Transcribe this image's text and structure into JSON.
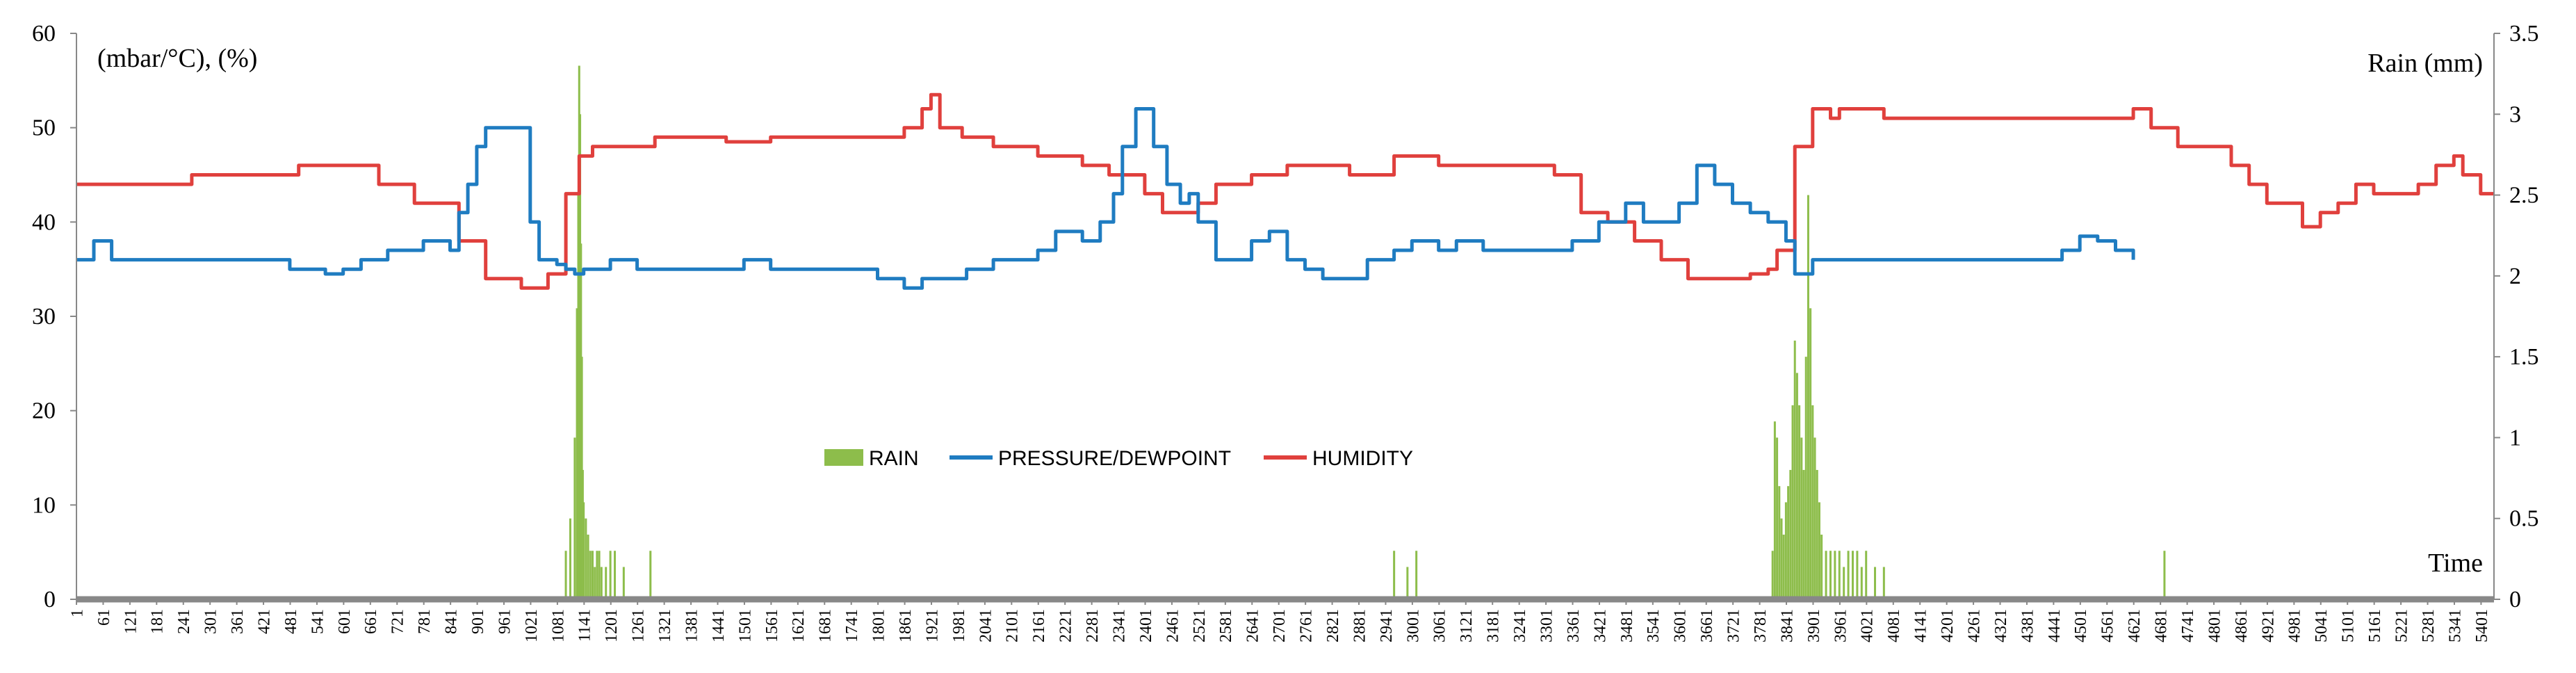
{
  "chart_data": {
    "type": "line",
    "left_axis_title": "(mbar/°C), (%)",
    "right_axis_title": "Rain (mm)",
    "x_axis_title": "Time",
    "xlim": [
      1,
      5430
    ],
    "ylim_left": [
      0,
      60
    ],
    "ylim_right": [
      0,
      3.5
    ],
    "yticks_left": [
      "0",
      "10",
      "20",
      "30",
      "40",
      "50",
      "60"
    ],
    "yticks_right": [
      "0",
      "0.5",
      "1",
      "1.5",
      "2",
      "2.5",
      "3",
      "3.5"
    ],
    "xtick_labels": [
      "1",
      "61",
      "121",
      "181",
      "241",
      "301",
      "361",
      "421",
      "481",
      "541",
      "601",
      "661",
      "721",
      "781",
      "841",
      "901",
      "961",
      "1021",
      "1081",
      "1141",
      "1201",
      "1261",
      "1321",
      "1381",
      "1441",
      "1501",
      "1561",
      "1621",
      "1681",
      "1741",
      "1801",
      "1861",
      "1921",
      "1981",
      "2041",
      "2101",
      "2161",
      "2221",
      "2281",
      "2341",
      "2401",
      "2461",
      "2521",
      "2581",
      "2641",
      "2701",
      "2761",
      "2821",
      "2881",
      "2941",
      "3001",
      "3061",
      "3121",
      "3181",
      "3241",
      "3301",
      "3361",
      "3421",
      "3481",
      "3541",
      "3601",
      "3661",
      "3721",
      "3781",
      "3841",
      "3901",
      "3961",
      "4021",
      "4081",
      "4141",
      "4201",
      "4261",
      "4321",
      "4381",
      "4441",
      "4501",
      "4561",
      "4621",
      "4681",
      "4741",
      "4801",
      "4861",
      "4921",
      "4981",
      "5041",
      "5101",
      "5161",
      "5221",
      "5281",
      "5341",
      "5401"
    ],
    "legend": [
      "RAIN",
      "PRESSURE/DEWPOINT",
      "HUMIDITY"
    ],
    "series": [
      {
        "name": "HUMIDITY",
        "axis": "left",
        "color": "#e0403d",
        "x": [
          1,
          240,
          260,
          500,
          600,
          680,
          760,
          860,
          920,
          1000,
          1060,
          1100,
          1130,
          1160,
          1200,
          1260,
          1300,
          1360,
          1400,
          1460,
          1560,
          1640,
          1760,
          1860,
          1900,
          1920,
          1940,
          1990,
          2060,
          2160,
          2260,
          2320,
          2400,
          2440,
          2520,
          2560,
          2640,
          2720,
          2800,
          2860,
          2900,
          2960,
          3060,
          3160,
          3260,
          3320,
          3380,
          3440,
          3500,
          3560,
          3620,
          3700,
          3760,
          3800,
          3820,
          3860,
          3900,
          3940,
          3960,
          4000,
          4060,
          4120,
          4200,
          4300,
          4400,
          4500,
          4560,
          4620,
          4660,
          4720,
          4800,
          4840,
          4880,
          4920,
          4960,
          5000,
          5040,
          5080,
          5120,
          5160,
          5200,
          5260,
          5300,
          5340,
          5360,
          5400,
          5430
        ],
        "y": [
          44,
          44,
          45,
          46,
          46,
          44,
          42,
          38,
          34,
          33,
          34.5,
          43,
          47,
          48,
          48,
          48,
          49,
          49,
          49,
          48.5,
          49,
          49,
          49,
          50,
          52,
          53.5,
          50,
          49,
          48,
          47,
          46,
          45,
          43,
          41,
          42,
          44,
          45,
          46,
          46,
          45,
          45,
          47,
          46,
          46,
          46,
          45,
          41,
          40,
          38,
          36,
          34,
          34,
          34.5,
          35,
          37,
          48,
          52,
          51,
          52,
          52,
          51,
          51,
          51,
          51,
          51,
          51,
          51,
          52,
          50,
          48,
          48,
          46,
          44,
          42,
          42,
          39.5,
          41,
          42,
          44,
          43,
          43,
          44,
          46,
          47,
          45,
          43,
          43
        ]
      },
      {
        "name": "PRESSURE/DEWPOINT",
        "axis": "left",
        "color": "#1f7cc1",
        "x": [
          1,
          40,
          80,
          120,
          200,
          300,
          400,
          480,
          520,
          560,
          600,
          640,
          680,
          700,
          740,
          780,
          800,
          840,
          860,
          880,
          900,
          920,
          960,
          1000,
          1020,
          1040,
          1060,
          1080,
          1100,
          1120,
          1140,
          1200,
          1260,
          1300,
          1400,
          1500,
          1560,
          1640,
          1700,
          1800,
          1860,
          1900,
          1960,
          2000,
          2060,
          2100,
          2160,
          2200,
          2260,
          2300,
          2330,
          2350,
          2380,
          2420,
          2450,
          2480,
          2500,
          2520,
          2560,
          2600,
          2640,
          2680,
          2720,
          2760,
          2800,
          2860,
          2900,
          2960,
          3000,
          3060,
          3100,
          3160,
          3220,
          3280,
          3320,
          3360,
          3420,
          3480,
          3520,
          3560,
          3600,
          3640,
          3680,
          3720,
          3760,
          3800,
          3840,
          3860,
          3900,
          3960,
          4000,
          4060,
          4100,
          4200,
          4300,
          4400,
          4460,
          4500,
          4540,
          4580,
          4620
        ],
        "y": [
          36,
          38,
          36,
          36,
          36,
          36,
          36,
          35,
          35,
          34.5,
          35,
          36,
          36,
          37,
          37,
          38,
          38,
          37,
          41,
          44,
          48,
          50,
          50,
          50,
          40,
          36,
          36,
          35.5,
          35,
          34.5,
          35,
          36,
          35,
          35,
          35,
          36,
          35,
          35,
          35,
          34,
          33,
          34,
          34,
          35,
          36,
          36,
          37,
          39,
          38,
          40,
          43,
          48,
          52,
          48,
          44,
          42,
          43,
          40,
          36,
          36,
          38,
          39,
          36,
          35,
          34,
          34,
          36,
          37,
          38,
          37,
          38,
          37,
          37,
          37,
          37,
          38,
          40,
          42,
          40,
          40,
          42,
          46,
          44,
          42,
          41,
          40,
          38,
          34.5,
          36,
          36,
          36,
          36,
          36,
          36,
          36,
          36,
          37,
          38.5,
          38,
          37,
          36
        ]
      }
    ],
    "bar_series": {
      "name": "RAIN",
      "axis": "right",
      "color": "#8dbd4b",
      "x": [
        1100,
        1110,
        1120,
        1125,
        1128,
        1130,
        1132,
        1134,
        1136,
        1138,
        1140,
        1145,
        1150,
        1155,
        1160,
        1165,
        1170,
        1175,
        1180,
        1190,
        1200,
        1210,
        1230,
        1290,
        2960,
        2990,
        3010,
        3810,
        3815,
        3820,
        3825,
        3830,
        3835,
        3840,
        3845,
        3850,
        3855,
        3860,
        3865,
        3870,
        3875,
        3880,
        3885,
        3890,
        3895,
        3900,
        3905,
        3910,
        3915,
        3920,
        3930,
        3940,
        3950,
        3960,
        3970,
        3980,
        3990,
        4000,
        4010,
        4020,
        4040,
        4060,
        4690
      ],
      "values": [
        0.3,
        0.5,
        1.0,
        1.8,
        2.5,
        3.3,
        3.0,
        2.2,
        1.5,
        0.8,
        0.6,
        0.5,
        0.4,
        0.3,
        0.3,
        0.2,
        0.3,
        0.3,
        0.2,
        0.2,
        0.3,
        0.3,
        0.2,
        0.3,
        0.3,
        0.2,
        0.3,
        0.3,
        1.1,
        1.0,
        0.7,
        0.5,
        0.4,
        0.6,
        0.7,
        0.8,
        1.2,
        1.6,
        1.4,
        1.2,
        1.0,
        0.8,
        1.5,
        2.5,
        1.8,
        1.2,
        1.0,
        0.8,
        0.6,
        0.4,
        0.3,
        0.3,
        0.3,
        0.3,
        0.2,
        0.3,
        0.3,
        0.3,
        0.2,
        0.3,
        0.2,
        0.2,
        0.3
      ]
    }
  }
}
